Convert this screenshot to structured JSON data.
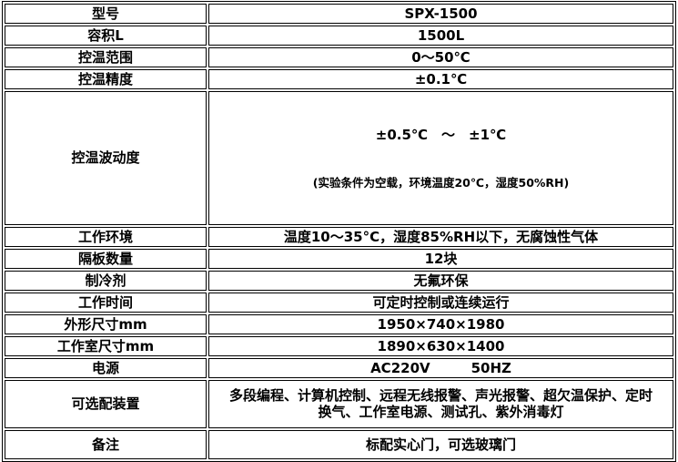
{
  "colors": {
    "border": "#000000",
    "background": "#ffffff",
    "text": "#000000"
  },
  "table": {
    "rows": [
      {
        "label": "型号",
        "value": "SPX-1500"
      },
      {
        "label": "容积L",
        "value": "1500L"
      },
      {
        "label": "控温范围",
        "value": "0～50℃"
      },
      {
        "label": "控温精度",
        "value": "±0.1℃"
      },
      {
        "label": "控温波动度",
        "value": "±0.5℃　～　±1℃",
        "value2": "(实验条件为空载，环境温度20℃，湿度50%RH)"
      },
      {
        "label": "工作环境",
        "value": "温度10～35°C，湿度85%RH以下，无腐蚀性气体"
      },
      {
        "label": "隔板数量",
        "value": "12块"
      },
      {
        "label": "制冷剂",
        "value": "无氟环保"
      },
      {
        "label": "工作时间",
        "value": "可定时控制或连续运行"
      },
      {
        "label": "外形尺寸mm",
        "value": "1950×740×1980"
      },
      {
        "label": "工作室尺寸mm",
        "value": "1890×630×1400"
      },
      {
        "label": "电源",
        "value": "AC220V　　　50HZ"
      },
      {
        "label": "可选配装置",
        "value": "多段编程、计算机控制、远程无线报警、声光报警、超欠温保护、定时\n换气、工作室电源、测试孔、紫外消毒灯"
      },
      {
        "label": "备注",
        "value": "标配实心门，可选玻璃门"
      }
    ]
  }
}
